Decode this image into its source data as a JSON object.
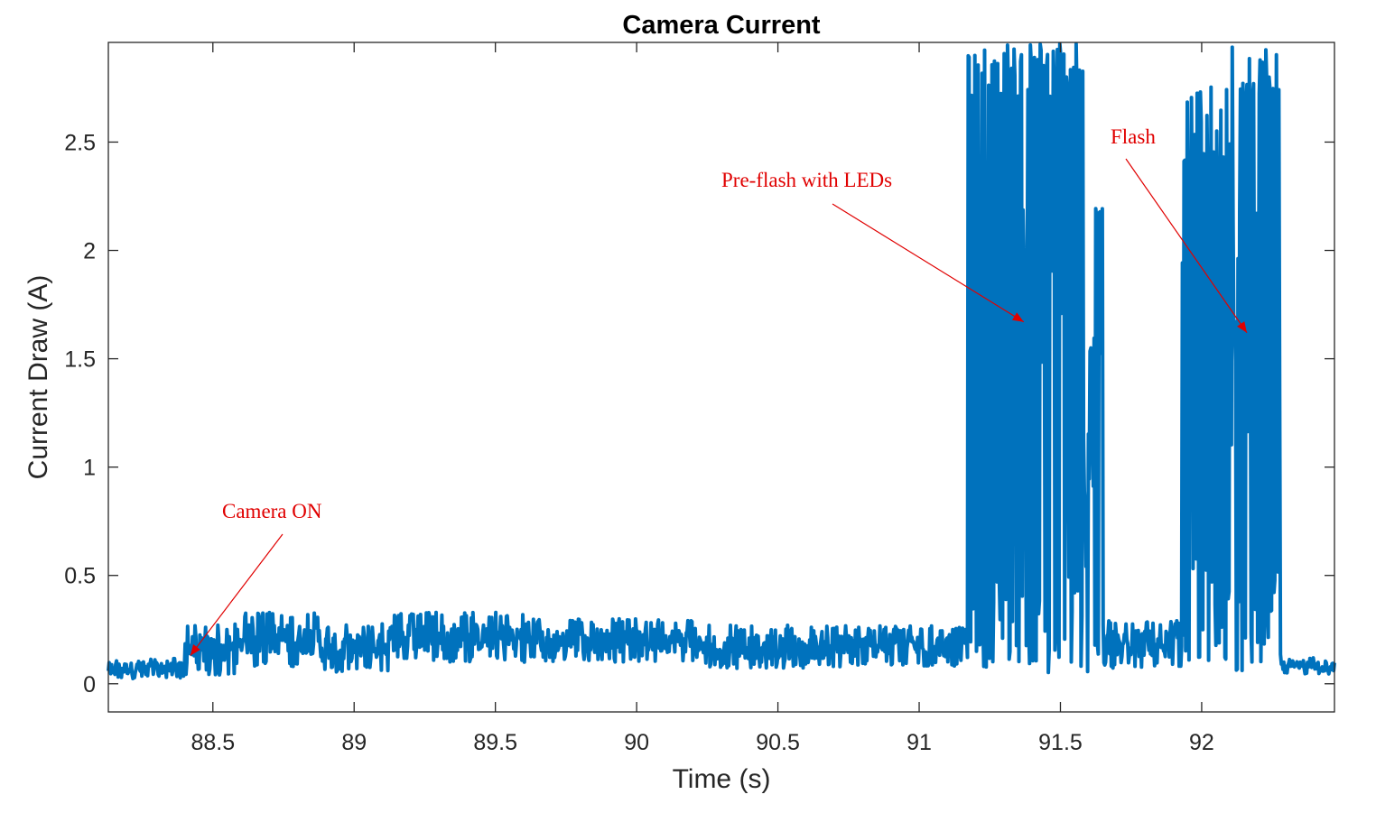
{
  "chart_data": {
    "type": "line",
    "title": "Camera Current",
    "xlabel": "Time (s)",
    "ylabel": "Current Draw (A)",
    "xlim": [
      88.13,
      92.47
    ],
    "ylim": [
      -0.13,
      2.96
    ],
    "grid": false,
    "x_ticks": [
      88.5,
      89,
      89.5,
      90,
      90.5,
      91,
      91.5,
      92
    ],
    "x_tick_labels": [
      "88.5",
      "89",
      "89.5",
      "90",
      "90.5",
      "91",
      "91.5",
      "92"
    ],
    "y_ticks": [
      0,
      0.5,
      1,
      1.5,
      2,
      2.5
    ],
    "y_tick_labels": [
      "0",
      "0.5",
      "1",
      "1.5",
      "2",
      "2.5"
    ],
    "series": [
      {
        "color": "#0072BD",
        "segments": [
          {
            "t0": 88.13,
            "t1": 88.4,
            "min": 0.02,
            "max": 0.12
          },
          {
            "t0": 88.4,
            "t1": 88.6,
            "min": 0.04,
            "max": 0.28
          },
          {
            "t0": 88.6,
            "t1": 88.88,
            "min": 0.08,
            "max": 0.33
          },
          {
            "t0": 88.88,
            "t1": 89.0,
            "min": 0.05,
            "max": 0.28
          },
          {
            "t0": 89.0,
            "t1": 89.12,
            "min": 0.06,
            "max": 0.28
          },
          {
            "t0": 89.12,
            "t1": 89.6,
            "min": 0.1,
            "max": 0.33
          },
          {
            "t0": 89.6,
            "t1": 90.2,
            "min": 0.1,
            "max": 0.3
          },
          {
            "t0": 90.2,
            "t1": 90.75,
            "min": 0.07,
            "max": 0.27
          },
          {
            "t0": 90.75,
            "t1": 91.17,
            "min": 0.08,
            "max": 0.27
          },
          {
            "t0": 91.17,
            "t1": 91.58,
            "min": 0.05,
            "max": 2.96
          },
          {
            "t0": 91.58,
            "t1": 91.65,
            "min": 0.05,
            "max": 2.22
          },
          {
            "t0": 91.65,
            "t1": 91.93,
            "min": 0.07,
            "max": 0.3
          },
          {
            "t0": 91.93,
            "t1": 92.28,
            "min": 0.05,
            "max": 2.96
          },
          {
            "t0": 92.28,
            "t1": 92.47,
            "min": 0.04,
            "max": 0.12
          }
        ],
        "pulse_groups": [
          {
            "t_start": 91.17,
            "t_end": 91.58,
            "high_min": 2.7,
            "high_max": 2.96,
            "low_min": 0.05,
            "low_max": 0.5
          },
          {
            "t_start": 91.62,
            "t_end": 91.65,
            "high_min": 2.15,
            "high_max": 2.22,
            "low_min": 0.05,
            "low_max": 0.2
          },
          {
            "t_start": 91.93,
            "t_end": 92.1,
            "high_min": 2.1,
            "high_max": 2.76,
            "low_min": 0.05,
            "low_max": 0.6
          },
          {
            "t_start": 92.13,
            "t_end": 92.28,
            "high_min": 2.7,
            "high_max": 2.96,
            "low_min": 0.05,
            "low_max": 0.6
          }
        ]
      }
    ],
    "annotations": [
      {
        "text": "Camera ON",
        "color": "#e00000",
        "arrow_to": {
          "x": 88.42,
          "y": 0.13
        }
      },
      {
        "text": "Pre-flash with LEDs",
        "color": "#e00000",
        "arrow_to": {
          "x": 91.37,
          "y": 1.67
        }
      },
      {
        "text": "Flash",
        "color": "#e00000",
        "arrow_to": {
          "x": 92.16,
          "y": 1.62
        }
      }
    ]
  }
}
